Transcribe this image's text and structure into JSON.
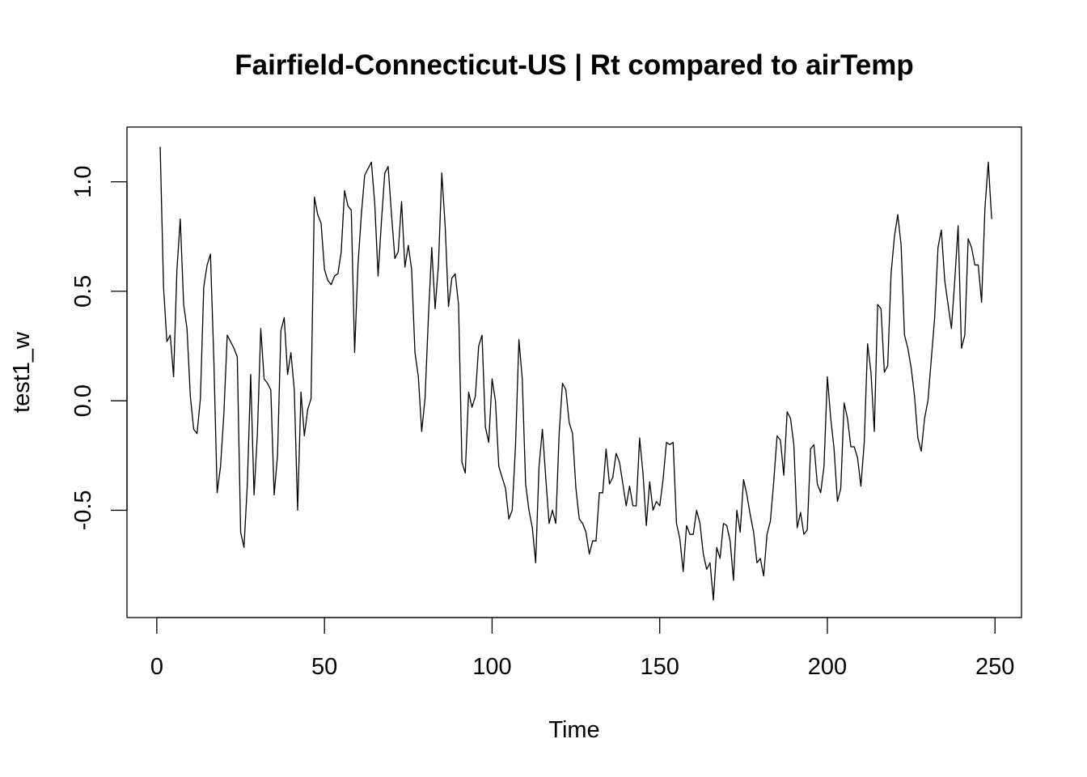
{
  "chart_data": {
    "type": "line",
    "title": "Fairfield-Connecticut-US | Rt compared to airTemp",
    "xlabel": "Time",
    "ylabel": "test1_w",
    "xlim": [
      -8.9,
      257.9
    ],
    "ylim": [
      -0.99,
      1.25
    ],
    "x_ticks": [
      0,
      50,
      100,
      150,
      200,
      250
    ],
    "x_tick_labels": [
      "0",
      "50",
      "100",
      "150",
      "200",
      "250"
    ],
    "y_ticks": [
      -0.5,
      0.0,
      0.5,
      1.0
    ],
    "y_tick_labels": [
      "-0.5",
      "0.0",
      "0.5",
      "1.0"
    ],
    "grid": false,
    "legend": "none",
    "colors": {
      "line": "#000000",
      "background": "#ffffff"
    },
    "series": [
      {
        "x_start": 1,
        "x_step": 1,
        "values": [
          1.16,
          0.52,
          0.27,
          0.3,
          0.11,
          0.6,
          0.83,
          0.44,
          0.33,
          0.02,
          -0.13,
          -0.15,
          0.01,
          0.52,
          0.62,
          0.67,
          0.19,
          -0.42,
          -0.3,
          -0.06,
          0.3,
          0.27,
          0.24,
          0.2,
          -0.6,
          -0.67,
          -0.38,
          0.12,
          -0.43,
          -0.15,
          0.33,
          0.1,
          0.08,
          0.05,
          -0.43,
          -0.25,
          0.32,
          0.38,
          0.12,
          0.22,
          0.05,
          -0.5,
          0.04,
          -0.16,
          -0.04,
          0.01,
          0.93,
          0.85,
          0.81,
          0.6,
          0.55,
          0.53,
          0.57,
          0.58,
          0.68,
          0.96,
          0.89,
          0.87,
          0.22,
          0.62,
          0.85,
          1.03,
          1.06,
          1.09,
          0.9,
          0.57,
          0.82,
          1.04,
          1.07,
          0.85,
          0.65,
          0.68,
          0.91,
          0.61,
          0.71,
          0.6,
          0.22,
          0.11,
          -0.14,
          0.01,
          0.38,
          0.7,
          0.42,
          0.62,
          1.04,
          0.8,
          0.43,
          0.56,
          0.58,
          0.44,
          -0.28,
          -0.33,
          0.04,
          -0.03,
          0.02,
          0.25,
          0.3,
          -0.12,
          -0.19,
          0.1,
          0.0,
          -0.3,
          -0.35,
          -0.4,
          -0.54,
          -0.5,
          -0.2,
          0.28,
          0.1,
          -0.38,
          -0.5,
          -0.58,
          -0.74,
          -0.3,
          -0.13,
          -0.35,
          -0.56,
          -0.5,
          -0.56,
          -0.15,
          0.08,
          0.05,
          -0.1,
          -0.15,
          -0.4,
          -0.54,
          -0.56,
          -0.6,
          -0.7,
          -0.64,
          -0.64,
          -0.42,
          -0.42,
          -0.22,
          -0.38,
          -0.35,
          -0.24,
          -0.28,
          -0.38,
          -0.48,
          -0.39,
          -0.48,
          -0.48,
          -0.17,
          -0.33,
          -0.57,
          -0.37,
          -0.5,
          -0.46,
          -0.48,
          -0.36,
          -0.19,
          -0.2,
          -0.19,
          -0.56,
          -0.63,
          -0.78,
          -0.57,
          -0.61,
          -0.61,
          -0.5,
          -0.56,
          -0.7,
          -0.77,
          -0.74,
          -0.91,
          -0.67,
          -0.72,
          -0.56,
          -0.57,
          -0.64,
          -0.82,
          -0.5,
          -0.6,
          -0.36,
          -0.43,
          -0.52,
          -0.6,
          -0.74,
          -0.72,
          -0.8,
          -0.61,
          -0.55,
          -0.37,
          -0.16,
          -0.18,
          -0.34,
          -0.05,
          -0.08,
          -0.2,
          -0.58,
          -0.51,
          -0.61,
          -0.59,
          -0.22,
          -0.2,
          -0.38,
          -0.42,
          -0.3,
          0.11,
          -0.08,
          -0.22,
          -0.46,
          -0.4,
          -0.01,
          -0.08,
          -0.21,
          -0.21,
          -0.26,
          -0.39,
          -0.19,
          0.26,
          0.13,
          -0.14,
          0.44,
          0.42,
          0.13,
          0.16,
          0.58,
          0.75,
          0.85,
          0.71,
          0.3,
          0.24,
          0.15,
          0.02,
          -0.17,
          -0.23,
          -0.08,
          0.0,
          0.19,
          0.38,
          0.7,
          0.78,
          0.55,
          0.44,
          0.33,
          0.55,
          0.8,
          0.24,
          0.3,
          0.74,
          0.7,
          0.62,
          0.62,
          0.45,
          0.88,
          1.09,
          0.83
        ]
      }
    ]
  }
}
